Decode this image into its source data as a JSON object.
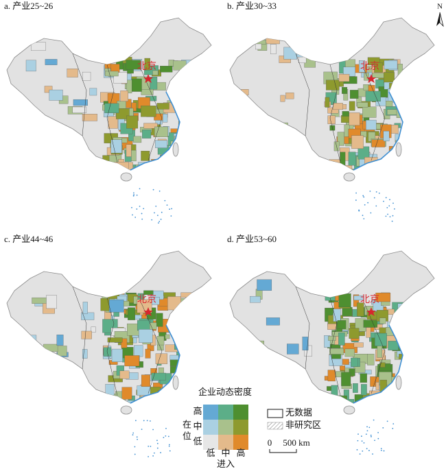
{
  "panels": [
    {
      "label": "a. 产业25~26",
      "capital": "北京"
    },
    {
      "label": "b. 产业30~33",
      "capital": "北京"
    },
    {
      "label": "c. 产业44~46",
      "capital": "北京"
    },
    {
      "label": "d. 产业53~60",
      "capital": "北京"
    }
  ],
  "north": "N",
  "legend": {
    "title": "企业动态密度",
    "y_axis_label": "在位",
    "y_levels": [
      "高",
      "中",
      "低"
    ],
    "x_levels": [
      "低",
      "中",
      "高"
    ],
    "x_axis_label": "进入",
    "colors": [
      [
        "#64a9d4",
        "#5cae88",
        "#4e8f30"
      ],
      [
        "#aad0e2",
        "#a9c18c",
        "#8e9a2e"
      ],
      [
        "#e6e6e6",
        "#e4ba8b",
        "#e08a2b"
      ]
    ],
    "no_data": "无数据",
    "non_study": "非研究区"
  },
  "scale_bar": {
    "start": "0",
    "end": "500 km"
  }
}
